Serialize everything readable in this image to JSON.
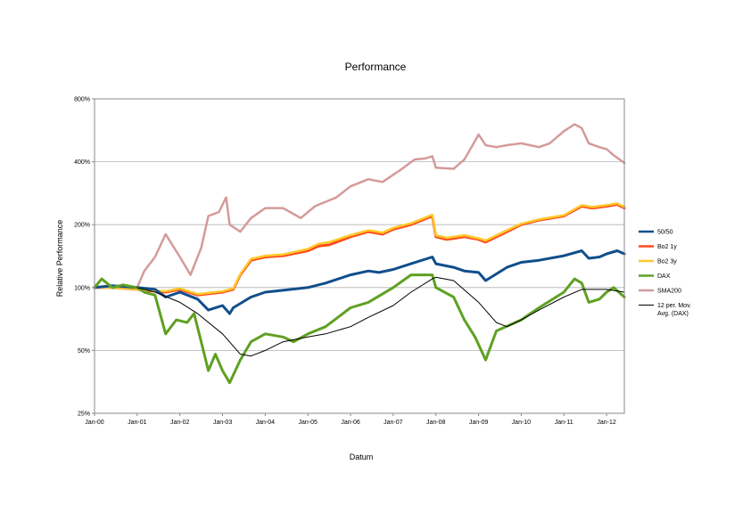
{
  "chart_data": {
    "type": "line",
    "title": "Performance",
    "xlabel": "Datum",
    "ylabel": "Relative Performance",
    "yscale": "log",
    "ylim": [
      25,
      800
    ],
    "xlim": [
      "2000-01",
      "2012-06"
    ],
    "grid": "horizontal",
    "legend_position": "right",
    "y_ticks": [
      {
        "value": 25,
        "label": "25%"
      },
      {
        "value": 50,
        "label": "50%"
      },
      {
        "value": 100,
        "label": "100%"
      },
      {
        "value": 200,
        "label": "200%"
      },
      {
        "value": 400,
        "label": "400%"
      },
      {
        "value": 800,
        "label": "800%"
      }
    ],
    "x_ticks": [
      {
        "value": "2000-01",
        "label": "Jan-00"
      },
      {
        "value": "2001-01",
        "label": "Jan-01"
      },
      {
        "value": "2002-01",
        "label": "Jan-02"
      },
      {
        "value": "2003-01",
        "label": "Jan-03"
      },
      {
        "value": "2004-01",
        "label": "Jan-04"
      },
      {
        "value": "2005-01",
        "label": "Jan-05"
      },
      {
        "value": "2006-01",
        "label": "Jan-06"
      },
      {
        "value": "2007-01",
        "label": "Jan-07"
      },
      {
        "value": "2008-01",
        "label": "Jan-08"
      },
      {
        "value": "2009-01",
        "label": "Jan-09"
      },
      {
        "value": "2010-01",
        "label": "Jan-10"
      },
      {
        "value": "2011-01",
        "label": "Jan-11"
      },
      {
        "value": "2012-01",
        "label": "Jan-12"
      }
    ],
    "series": [
      {
        "name": "SMA200",
        "color": "#d49a9a",
        "width": 2.5,
        "points": [
          [
            "2000-01",
            100
          ],
          [
            "2000-07",
            100
          ],
          [
            "2001-01",
            100
          ],
          [
            "2001-03",
            120
          ],
          [
            "2001-06",
            140
          ],
          [
            "2001-09",
            180
          ],
          [
            "2002-01",
            140
          ],
          [
            "2002-04",
            115
          ],
          [
            "2002-07",
            155
          ],
          [
            "2002-09",
            220
          ],
          [
            "2002-12",
            230
          ],
          [
            "2003-02",
            270
          ],
          [
            "2003-03",
            200
          ],
          [
            "2003-06",
            185
          ],
          [
            "2003-09",
            215
          ],
          [
            "2004-01",
            240
          ],
          [
            "2004-06",
            240
          ],
          [
            "2004-11",
            215
          ],
          [
            "2005-03",
            245
          ],
          [
            "2005-09",
            270
          ],
          [
            "2006-01",
            305
          ],
          [
            "2006-06",
            330
          ],
          [
            "2006-10",
            320
          ],
          [
            "2007-03",
            365
          ],
          [
            "2007-07",
            410
          ],
          [
            "2007-10",
            415
          ],
          [
            "2007-12",
            425
          ],
          [
            "2008-01",
            375
          ],
          [
            "2008-06",
            370
          ],
          [
            "2008-09",
            410
          ],
          [
            "2008-11",
            470
          ],
          [
            "2009-01",
            540
          ],
          [
            "2009-03",
            480
          ],
          [
            "2009-06",
            470
          ],
          [
            "2009-09",
            480
          ],
          [
            "2010-01",
            490
          ],
          [
            "2010-06",
            470
          ],
          [
            "2010-09",
            490
          ],
          [
            "2011-01",
            560
          ],
          [
            "2011-04",
            605
          ],
          [
            "2011-06",
            580
          ],
          [
            "2011-08",
            490
          ],
          [
            "2011-11",
            470
          ],
          [
            "2012-01",
            460
          ],
          [
            "2012-03",
            430
          ],
          [
            "2012-06",
            395
          ]
        ]
      },
      {
        "name": "Bo2 1y",
        "color": "#ff4a1c",
        "width": 3,
        "points": [
          [
            "2000-01",
            100
          ],
          [
            "2000-06",
            100
          ],
          [
            "2001-01",
            98
          ],
          [
            "2001-09",
            95
          ],
          [
            "2002-01",
            98
          ],
          [
            "2002-06",
            92
          ],
          [
            "2003-01",
            95
          ],
          [
            "2003-04",
            98
          ],
          [
            "2003-06",
            115
          ],
          [
            "2003-09",
            135
          ],
          [
            "2004-01",
            140
          ],
          [
            "2004-06",
            142
          ],
          [
            "2005-01",
            150
          ],
          [
            "2005-04",
            158
          ],
          [
            "2005-07",
            160
          ],
          [
            "2006-01",
            175
          ],
          [
            "2006-06",
            185
          ],
          [
            "2006-10",
            180
          ],
          [
            "2007-01",
            190
          ],
          [
            "2007-06",
            200
          ],
          [
            "2007-12",
            220
          ],
          [
            "2008-01",
            175
          ],
          [
            "2008-04",
            170
          ],
          [
            "2008-09",
            175
          ],
          [
            "2009-01",
            170
          ],
          [
            "2009-03",
            165
          ],
          [
            "2009-09",
            185
          ],
          [
            "2010-01",
            200
          ],
          [
            "2010-06",
            210
          ],
          [
            "2011-01",
            220
          ],
          [
            "2011-06",
            245
          ],
          [
            "2011-09",
            240
          ],
          [
            "2012-01",
            245
          ],
          [
            "2012-04",
            250
          ],
          [
            "2012-06",
            240
          ]
        ]
      },
      {
        "name": "Bo2 3y",
        "color": "#ffc82a",
        "width": 2.5,
        "points": [
          [
            "2000-01",
            100
          ],
          [
            "2000-06",
            100
          ],
          [
            "2001-01",
            98
          ],
          [
            "2001-09",
            96
          ],
          [
            "2002-01",
            99
          ],
          [
            "2002-06",
            93
          ],
          [
            "2003-01",
            96
          ],
          [
            "2003-04",
            99
          ],
          [
            "2003-06",
            116
          ],
          [
            "2003-09",
            137
          ],
          [
            "2004-01",
            142
          ],
          [
            "2004-06",
            144
          ],
          [
            "2005-01",
            153
          ],
          [
            "2005-04",
            162
          ],
          [
            "2005-07",
            165
          ],
          [
            "2006-01",
            178
          ],
          [
            "2006-06",
            188
          ],
          [
            "2006-10",
            183
          ],
          [
            "2007-01",
            193
          ],
          [
            "2007-06",
            203
          ],
          [
            "2007-12",
            223
          ],
          [
            "2008-01",
            178
          ],
          [
            "2008-04",
            173
          ],
          [
            "2008-09",
            178
          ],
          [
            "2009-01",
            172
          ],
          [
            "2009-03",
            168
          ],
          [
            "2009-09",
            188
          ],
          [
            "2010-01",
            202
          ],
          [
            "2010-06",
            212
          ],
          [
            "2011-01",
            222
          ],
          [
            "2011-06",
            248
          ],
          [
            "2011-09",
            243
          ],
          [
            "2012-01",
            248
          ],
          [
            "2012-04",
            253
          ],
          [
            "2012-06",
            243
          ]
        ]
      },
      {
        "name": "50/50",
        "color": "#104e8b",
        "width": 3,
        "points": [
          [
            "2000-01",
            100
          ],
          [
            "2000-06",
            102
          ],
          [
            "2001-01",
            100
          ],
          [
            "2001-06",
            98
          ],
          [
            "2001-09",
            90
          ],
          [
            "2002-01",
            95
          ],
          [
            "2002-06",
            88
          ],
          [
            "2002-09",
            78
          ],
          [
            "2003-01",
            82
          ],
          [
            "2003-03",
            75
          ],
          [
            "2003-04",
            80
          ],
          [
            "2003-09",
            90
          ],
          [
            "2004-01",
            95
          ],
          [
            "2004-06",
            97
          ],
          [
            "2005-01",
            100
          ],
          [
            "2005-06",
            105
          ],
          [
            "2006-01",
            115
          ],
          [
            "2006-06",
            120
          ],
          [
            "2006-09",
            118
          ],
          [
            "2007-01",
            122
          ],
          [
            "2007-06",
            130
          ],
          [
            "2007-12",
            140
          ],
          [
            "2008-01",
            130
          ],
          [
            "2008-06",
            125
          ],
          [
            "2008-09",
            120
          ],
          [
            "2009-01",
            118
          ],
          [
            "2009-03",
            108
          ],
          [
            "2009-09",
            125
          ],
          [
            "2010-01",
            132
          ],
          [
            "2010-06",
            135
          ],
          [
            "2011-01",
            142
          ],
          [
            "2011-06",
            150
          ],
          [
            "2011-08",
            138
          ],
          [
            "2011-11",
            140
          ],
          [
            "2012-01",
            145
          ],
          [
            "2012-04",
            150
          ],
          [
            "2012-06",
            145
          ]
        ]
      },
      {
        "name": "DAX",
        "color": "#5fa023",
        "width": 3,
        "points": [
          [
            "2000-01",
            100
          ],
          [
            "2000-03",
            110
          ],
          [
            "2000-06",
            100
          ],
          [
            "2000-09",
            103
          ],
          [
            "2001-01",
            100
          ],
          [
            "2001-03",
            95
          ],
          [
            "2001-06",
            92
          ],
          [
            "2001-09",
            60
          ],
          [
            "2001-12",
            70
          ],
          [
            "2002-03",
            68
          ],
          [
            "2002-05",
            75
          ],
          [
            "2002-07",
            55
          ],
          [
            "2002-09",
            40
          ],
          [
            "2002-11",
            48
          ],
          [
            "2003-01",
            40
          ],
          [
            "2003-03",
            35
          ],
          [
            "2003-06",
            45
          ],
          [
            "2003-09",
            55
          ],
          [
            "2004-01",
            60
          ],
          [
            "2004-06",
            58
          ],
          [
            "2004-09",
            55
          ],
          [
            "2005-01",
            60
          ],
          [
            "2005-06",
            65
          ],
          [
            "2006-01",
            80
          ],
          [
            "2006-06",
            85
          ],
          [
            "2007-01",
            100
          ],
          [
            "2007-06",
            115
          ],
          [
            "2007-12",
            115
          ],
          [
            "2008-01",
            100
          ],
          [
            "2008-06",
            90
          ],
          [
            "2008-09",
            70
          ],
          [
            "2008-12",
            58
          ],
          [
            "2009-03",
            45
          ],
          [
            "2009-06",
            62
          ],
          [
            "2010-01",
            70
          ],
          [
            "2010-06",
            80
          ],
          [
            "2011-01",
            95
          ],
          [
            "2011-04",
            110
          ],
          [
            "2011-06",
            105
          ],
          [
            "2011-08",
            85
          ],
          [
            "2011-11",
            88
          ],
          [
            "2012-01",
            95
          ],
          [
            "2012-03",
            100
          ],
          [
            "2012-06",
            90
          ]
        ]
      },
      {
        "name": "12 per. Mov. Avg. (DAX)",
        "color": "#000000",
        "width": 1,
        "points": [
          [
            "2001-01",
            100
          ],
          [
            "2001-06",
            95
          ],
          [
            "2002-01",
            85
          ],
          [
            "2002-06",
            75
          ],
          [
            "2003-01",
            60
          ],
          [
            "2003-06",
            48
          ],
          [
            "2003-09",
            47
          ],
          [
            "2004-01",
            50
          ],
          [
            "2004-06",
            55
          ],
          [
            "2005-01",
            58
          ],
          [
            "2005-06",
            60
          ],
          [
            "2006-01",
            65
          ],
          [
            "2006-06",
            72
          ],
          [
            "2007-01",
            82
          ],
          [
            "2007-06",
            95
          ],
          [
            "2007-12",
            110
          ],
          [
            "2008-01",
            112
          ],
          [
            "2008-06",
            108
          ],
          [
            "2009-01",
            85
          ],
          [
            "2009-06",
            68
          ],
          [
            "2009-09",
            65
          ],
          [
            "2010-01",
            70
          ],
          [
            "2010-06",
            78
          ],
          [
            "2011-01",
            90
          ],
          [
            "2011-06",
            98
          ],
          [
            "2012-01",
            98
          ],
          [
            "2012-06",
            95
          ]
        ]
      }
    ],
    "legend_order": [
      "50/50",
      "Bo2 1y",
      "Bo2 3y",
      "DAX",
      "SMA200",
      "12 per. Mov. Avg. (DAX)"
    ],
    "legend_lines": {
      "12 per. Mov. Avg. (DAX)": [
        "12 per. Mov.",
        "Avg. (DAX)"
      ]
    }
  }
}
